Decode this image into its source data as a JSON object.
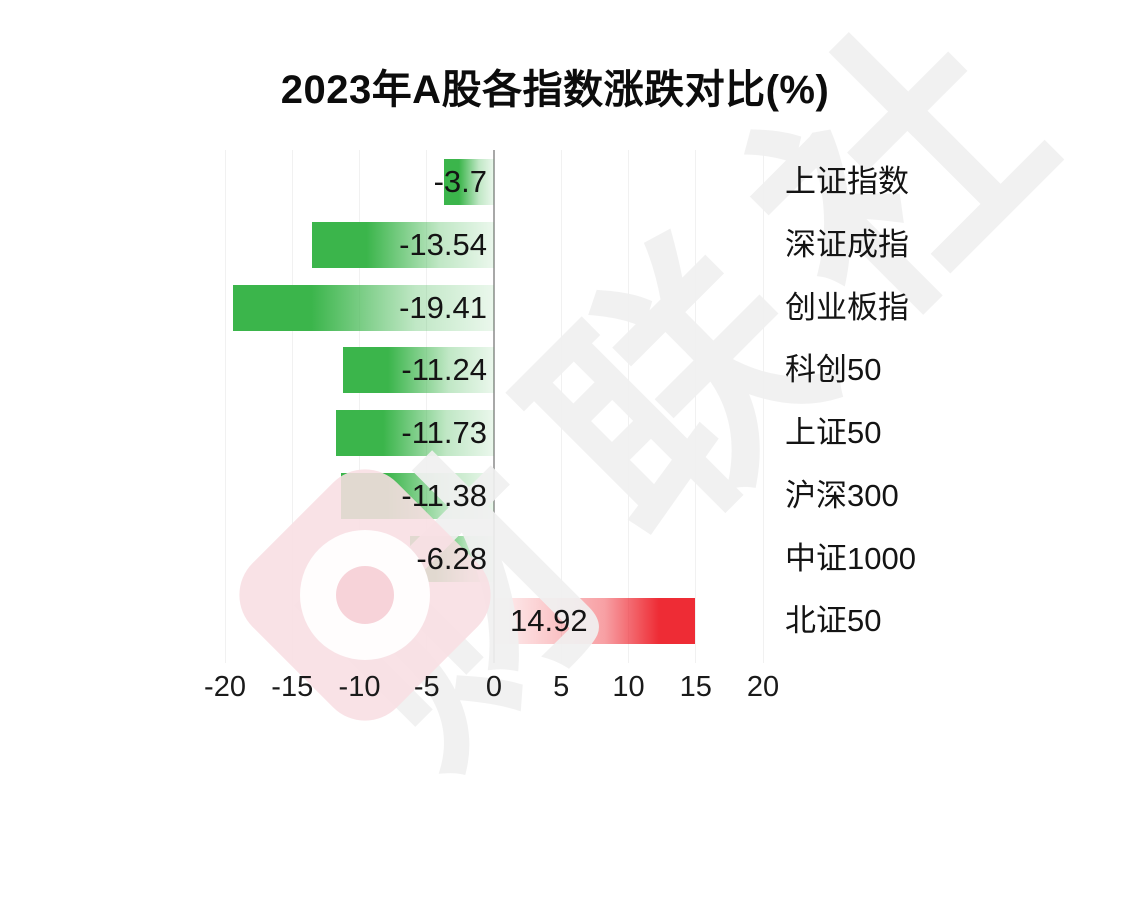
{
  "title": "2023年A股各指数涨跌对比(%)",
  "watermark": {
    "text": "财联社"
  },
  "chart_data": {
    "type": "bar",
    "orientation": "horizontal",
    "title": "2023年A股各指数涨跌对比(%)",
    "categories": [
      "上证指数",
      "深证成指",
      "创业板指",
      "科创50",
      "上证50",
      "沪深300",
      "中证1000",
      "北证50"
    ],
    "values": [
      -3.7,
      -13.54,
      -19.41,
      -11.24,
      -11.73,
      -11.38,
      -6.28,
      14.92
    ],
    "value_labels": [
      "-3.7",
      "-13.54",
      "-19.41",
      "-11.24",
      "-11.73",
      "-11.38",
      "-6.28",
      "14.92"
    ],
    "x_ticks": [
      -20,
      -15,
      -10,
      -5,
      0,
      5,
      10,
      15,
      20
    ],
    "x_tick_labels": [
      "-20",
      "-15",
      "-10",
      "-5",
      "0",
      "5",
      "10",
      "15",
      "20"
    ],
    "xlim": [
      -20,
      20
    ],
    "grid": true,
    "legend": false,
    "category_labels_position": "right",
    "colors": {
      "negative_bar": "#3bb54b",
      "positive_bar": "#ee2c35",
      "label_text": "#141414",
      "axis_line": "#a8a8a8",
      "gridline": "#f1f1f1",
      "watermark_gray": "#f0f0f0",
      "watermark_pink": "#f8e2e5"
    }
  }
}
